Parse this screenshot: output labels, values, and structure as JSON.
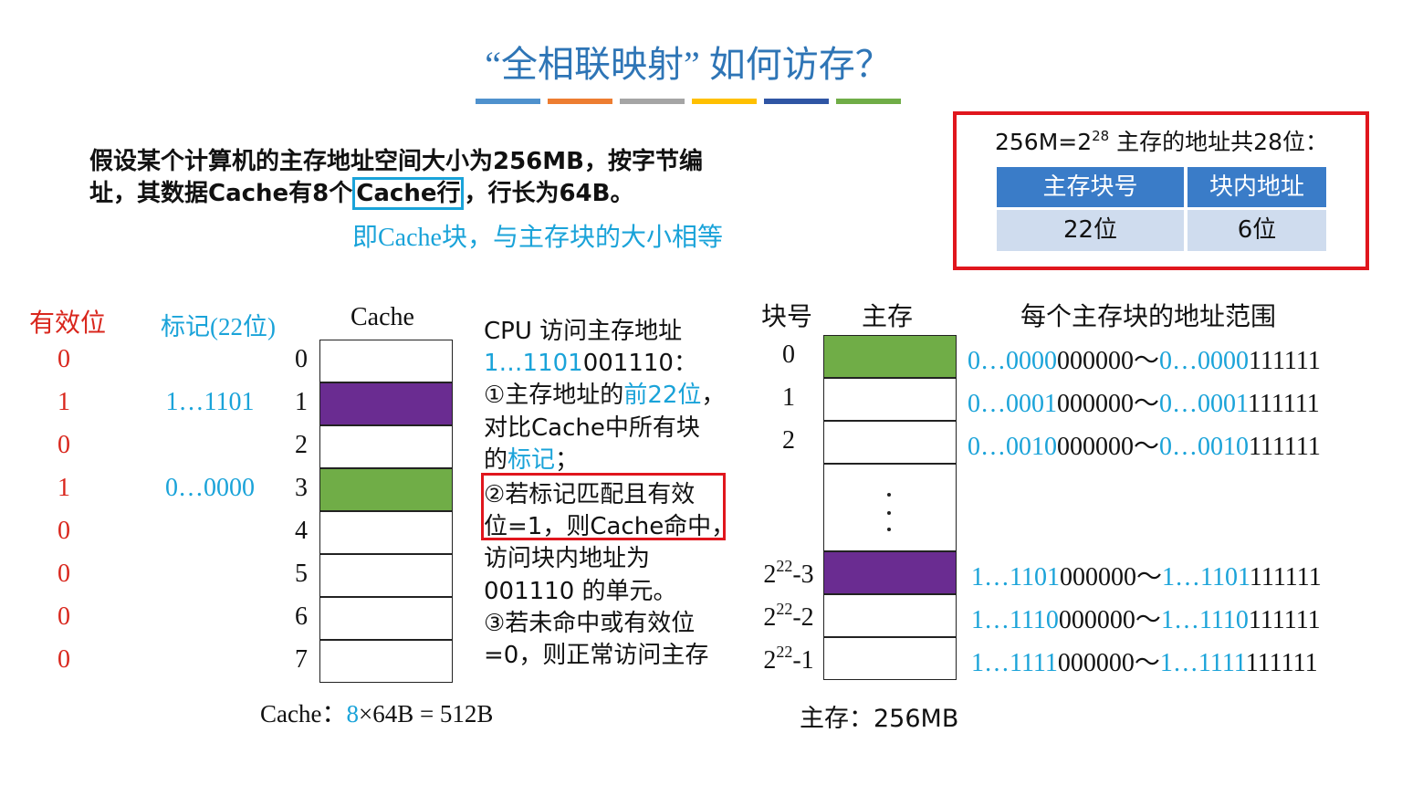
{
  "header": {
    "title": "“全相联映射” 如何访存？"
  },
  "problem": {
    "lines": [
      [
        {
          "text": "假设某个计算机的主存地址空间大小为256MB，按字节编"
        }
      ],
      [
        {
          "text": "址，其数据Cache有8个"
        },
        {
          "text": "Cache行",
          "boxed": true
        },
        {
          "text": "，行长为64B。"
        }
      ]
    ],
    "note": "即Cache块，与主存块的大小相等"
  },
  "address": {
    "formula": {
      "base": "256M=2",
      "exponent": "28",
      "text": " 主存的地址共28位："
    },
    "table": {
      "headers": [
        "主存块号",
        "块内地址"
      ],
      "rows": [
        [
          "22位",
          "6位"
        ]
      ]
    }
  },
  "cache": {
    "headers": {
      "valid": "有效位",
      "tag": "标记(22位)",
      "cache": "Cache"
    },
    "rows": [
      {
        "index": "0",
        "valid": "0"
      },
      {
        "index": "1",
        "valid": "1",
        "tag": "1…1101",
        "color": "#6a2c91"
      },
      {
        "index": "2",
        "valid": "0"
      },
      {
        "index": "3",
        "valid": "1",
        "tag": "0…0000",
        "color": "#70ad47"
      },
      {
        "index": "4",
        "valid": "0"
      },
      {
        "index": "5",
        "valid": "0"
      },
      {
        "index": "6",
        "valid": "0"
      },
      {
        "index": "7",
        "valid": "0"
      }
    ],
    "caption": [
      {
        "text": "Cache："
      },
      {
        "text": "8",
        "color": "#1aa3d9"
      },
      {
        "text": "×64B = 512B"
      }
    ]
  },
  "cpu": {
    "lines": [
      [
        {
          "text": "CPU 访问主存地址"
        }
      ],
      [
        {
          "text": "1…1101",
          "color": "#1aa3d9"
        },
        {
          "text": "001110："
        }
      ],
      [
        {
          "text": "①主存地址的"
        },
        {
          "text": "前22位",
          "color": "#1aa3d9"
        },
        {
          "text": "，"
        }
      ],
      [
        {
          "text": "对比Cache中所有块"
        }
      ],
      [
        {
          "text": "的"
        },
        {
          "text": "标记",
          "color": "#1aa3d9"
        },
        {
          "text": "；"
        }
      ],
      [
        {
          "text": "②若标记匹配且有效"
        }
      ],
      [
        {
          "text": "位=1，则Cache命中，"
        }
      ],
      [
        {
          "text": "访问块内地址为"
        }
      ],
      [
        {
          "text": "001110 的单元。"
        }
      ],
      [
        {
          "text": "③若未命中或有效位"
        }
      ],
      [
        {
          "text": "=0，则正常访问主存"
        }
      ]
    ],
    "highlight": [
      5,
      6
    ]
  },
  "memory": {
    "headers": {
      "block": "块号",
      "memory": "主存",
      "range": "每个主存块的地址范围"
    },
    "separator": "～",
    "rows": [
      {
        "block": "0",
        "color": "#70ad47",
        "start": [
          "0…0000",
          "000000"
        ],
        "end": [
          "0…0000",
          "111111"
        ]
      },
      {
        "block": "1",
        "start": [
          "0…0001",
          "000000"
        ],
        "end": [
          "0…0001",
          "111111"
        ]
      },
      {
        "block": "2",
        "start": [
          "0…0010",
          "000000"
        ],
        "end": [
          "0…0010",
          "111111"
        ]
      },
      {
        "block": {
          "base": "2",
          "exponent": "22",
          "suffix": "-3"
        },
        "color": "#6a2c91",
        "start": [
          "1…1101",
          "000000"
        ],
        "end": [
          "1…1101",
          "111111"
        ]
      },
      {
        "block": {
          "base": "2",
          "exponent": "22",
          "suffix": "-2"
        },
        "start": [
          "1…1110",
          "000000"
        ],
        "end": [
          "1…1110",
          "111111"
        ]
      },
      {
        "block": {
          "base": "2",
          "exponent": "22",
          "suffix": "-1"
        },
        "start": [
          "1…1111",
          "000000"
        ],
        "end": [
          "1…1111",
          "111111"
        ]
      }
    ],
    "caption": "主存：256MB"
  }
}
